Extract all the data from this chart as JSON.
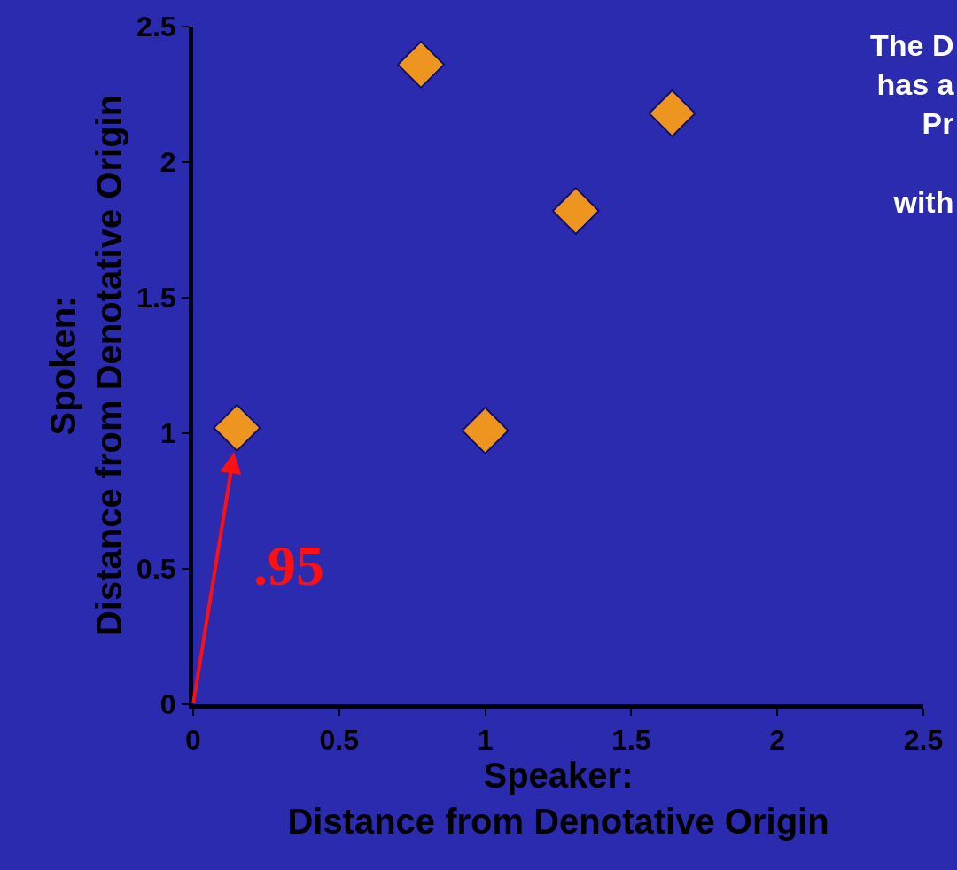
{
  "chart_data": {
    "type": "scatter",
    "xlabel": "Speaker:\nDistance from Denotative Origin",
    "ylabel": "Spoken:\nDistance from Denotative Origin",
    "x": [
      0.15,
      0.78,
      1.0,
      1.31,
      1.64
    ],
    "series": [
      {
        "color": "#ee9520",
        "values": [
          1.02,
          2.36,
          1.01,
          1.82,
          2.18
        ]
      }
    ],
    "xlim": [
      0,
      2.5
    ],
    "ylim": [
      0,
      2.5
    ],
    "xticks": [
      0,
      0.5,
      1,
      1.5,
      2,
      2.5
    ],
    "yticks": [
      0,
      0.5,
      1,
      1.5,
      2,
      2.5
    ],
    "marker": "diamond",
    "grid": false,
    "annotations": [
      ".95",
      "The D\nhas a\nPr\n\nwith"
    ]
  }
}
